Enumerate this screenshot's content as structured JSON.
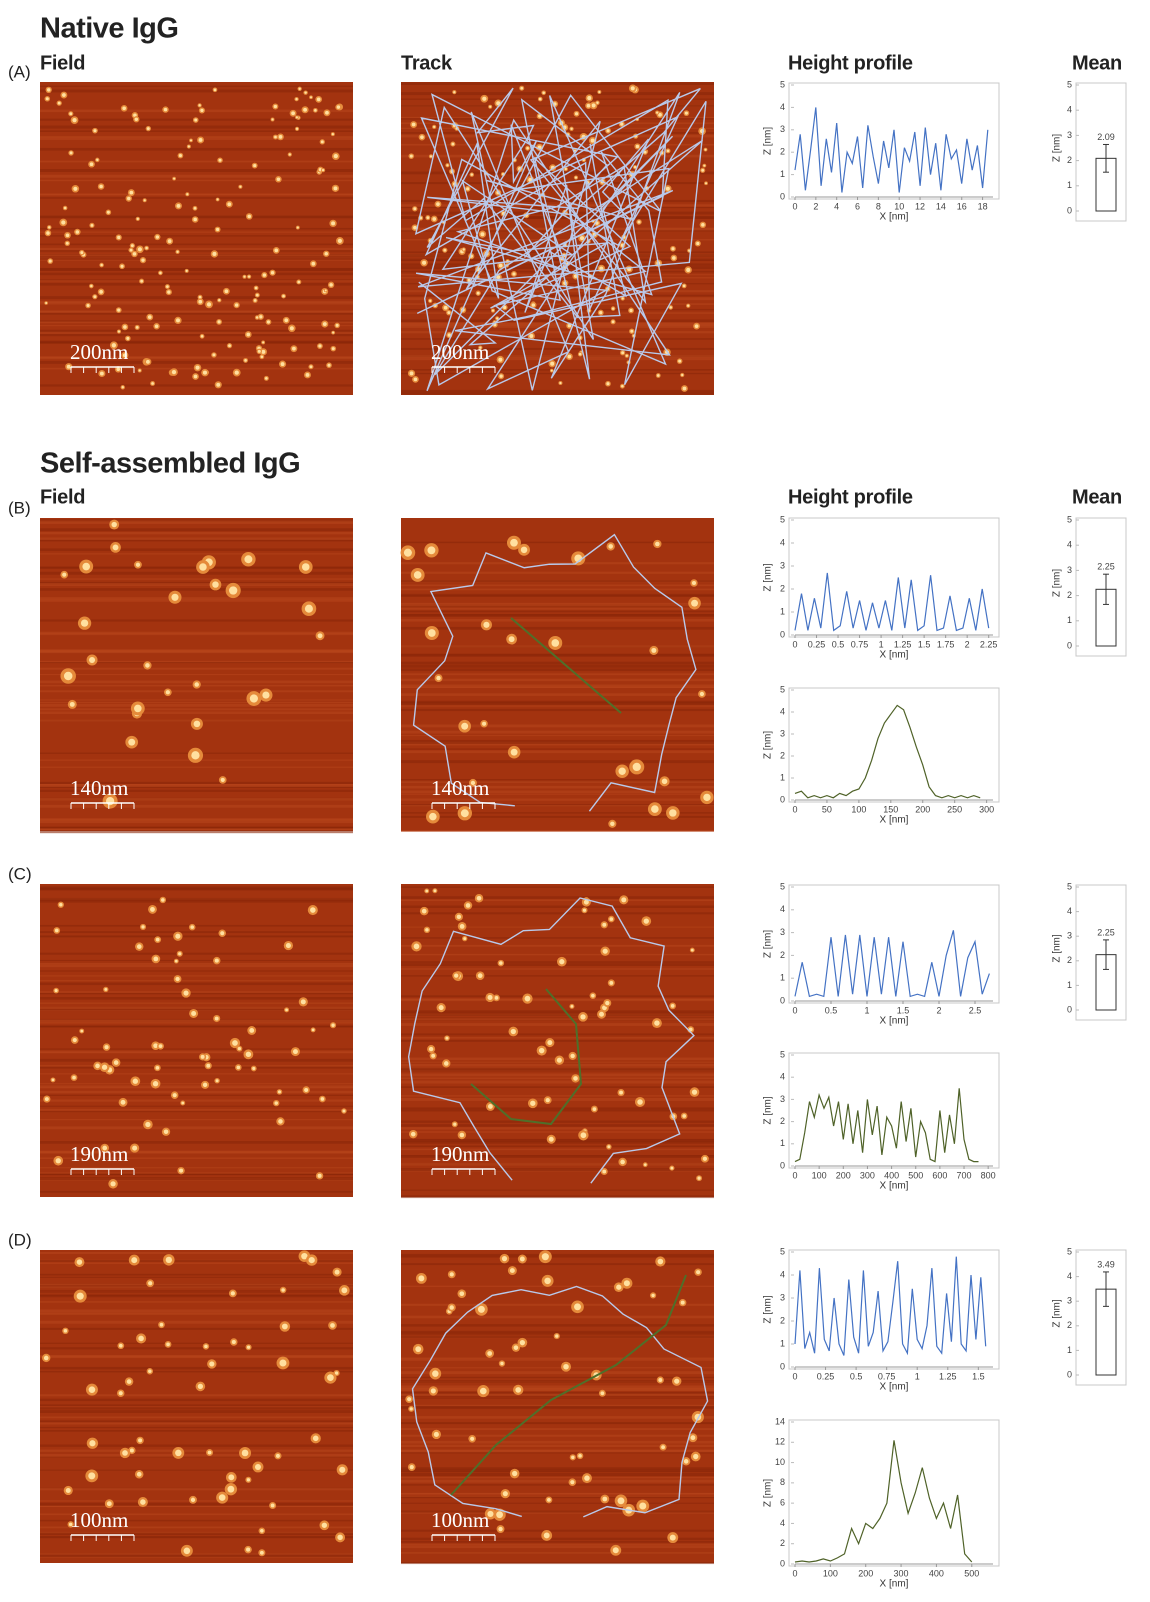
{
  "sections": [
    {
      "title": "Native IgG",
      "headers": {
        "field": "Field",
        "track": "Track",
        "profile": "Height profile",
        "mean": "Mean"
      }
    },
    {
      "title": "Self-assembled IgG",
      "headers": {
        "field": "Field",
        "profile": "Height profile",
        "mean": "Mean"
      }
    }
  ],
  "rows": [
    {
      "label": "(A)",
      "field_scale": "200nm",
      "track_scale": "200nm",
      "profiles": [
        {
          "type": "line",
          "color": "#4472c4",
          "x_label": "X [nm]",
          "y_label": "Z [nm]",
          "x": [
            0,
            0.5,
            1,
            1.5,
            2,
            2.5,
            3,
            3.5,
            4,
            4.5,
            5,
            5.5,
            6,
            6.5,
            7,
            7.5,
            8,
            8.5,
            9,
            9.5,
            10,
            10.5,
            11,
            11.5,
            12,
            12.5,
            13,
            13.5,
            14,
            14.5,
            15,
            15.5,
            16,
            16.5,
            17,
            17.5,
            18,
            18.5
          ],
          "values": [
            1.2,
            2.8,
            0.3,
            2.1,
            4.0,
            0.5,
            2.6,
            1.1,
            3.3,
            0.2,
            2.0,
            1.5,
            2.7,
            0.4,
            3.2,
            1.8,
            0.6,
            2.5,
            1.3,
            3.0,
            0.2,
            2.2,
            1.6,
            2.9,
            0.5,
            3.1,
            1.0,
            2.4,
            0.3,
            2.8,
            1.7,
            2.1,
            0.6,
            2.6,
            1.2,
            2.3,
            0.4,
            3.0
          ],
          "xlim": [
            0,
            19
          ],
          "ylim": [
            0,
            5
          ],
          "xticks": [
            0,
            2,
            4,
            6,
            8,
            10,
            12,
            14,
            16,
            18
          ],
          "yticks": [
            0,
            1,
            2,
            3,
            4,
            5
          ]
        }
      ],
      "mean": {
        "type": "bar",
        "y_label": "Z [nm]",
        "values": [
          2.09
        ],
        "errors": [
          0.55
        ],
        "ylim": [
          0,
          5
        ],
        "yticks": [
          0,
          1,
          2,
          3,
          4,
          5
        ]
      }
    },
    {
      "label": "(B)",
      "field_scale": "140nm",
      "track_scale": "140nm",
      "profiles": [
        {
          "type": "line",
          "color": "#4472c4",
          "x_label": "X [nm]",
          "y_label": "Z [nm]",
          "x": [
            0,
            0.075,
            0.15,
            0.225,
            0.3,
            0.375,
            0.45,
            0.525,
            0.6,
            0.675,
            0.75,
            0.825,
            0.9,
            0.975,
            1.05,
            1.125,
            1.2,
            1.275,
            1.35,
            1.425,
            1.5,
            1.575,
            1.65,
            1.725,
            1.8,
            1.875,
            1.95,
            2.025,
            2.1,
            2.175,
            2.25
          ],
          "values": [
            0.2,
            1.8,
            0.2,
            1.6,
            0.3,
            2.7,
            0.2,
            0.4,
            1.9,
            0.3,
            1.5,
            0.2,
            1.4,
            0.3,
            1.5,
            0.2,
            2.5,
            0.3,
            2.4,
            0.2,
            0.4,
            2.6,
            0.2,
            0.3,
            1.7,
            0.2,
            0.3,
            1.6,
            0.2,
            2.0,
            0.3
          ],
          "xlim": [
            0,
            2.3
          ],
          "ylim": [
            0,
            5
          ],
          "xticks": [
            0,
            0.25,
            0.5,
            0.75,
            1,
            1.25,
            1.5,
            1.75,
            2,
            2.25
          ],
          "yticks": [
            0,
            1,
            2,
            3,
            4,
            5
          ]
        },
        {
          "type": "line",
          "color": "#4f6228",
          "x_label": "X [nm]",
          "y_label": "Z [nm]",
          "x": [
            0,
            10,
            20,
            30,
            40,
            50,
            60,
            70,
            80,
            90,
            100,
            110,
            120,
            130,
            140,
            150,
            160,
            170,
            180,
            190,
            200,
            210,
            220,
            230,
            240,
            250,
            260,
            270,
            280,
            290
          ],
          "values": [
            0.3,
            0.4,
            0.1,
            0.2,
            0.1,
            0.2,
            0.1,
            0.3,
            0.2,
            0.4,
            0.5,
            1.0,
            1.8,
            2.8,
            3.5,
            3.9,
            4.3,
            4.1,
            3.3,
            2.4,
            1.6,
            0.6,
            0.2,
            0.1,
            0.2,
            0.1,
            0.2,
            0.1,
            0.2,
            0.1
          ],
          "xlim": [
            0,
            310
          ],
          "ylim": [
            0,
            5
          ],
          "xticks": [
            0,
            50,
            100,
            150,
            200,
            250,
            300
          ],
          "yticks": [
            0,
            1,
            2,
            3,
            4,
            5
          ]
        }
      ],
      "mean": {
        "type": "bar",
        "y_label": "Z [nm]",
        "values": [
          2.25
        ],
        "errors": [
          0.6
        ],
        "ylim": [
          0,
          5
        ],
        "yticks": [
          0,
          1,
          2,
          3,
          4,
          5
        ]
      }
    },
    {
      "label": "(C)",
      "field_scale": "190nm",
      "track_scale": "190nm",
      "profiles": [
        {
          "type": "line",
          "color": "#4472c4",
          "x_label": "X [nm]",
          "y_label": "Z [nm]",
          "x": [
            0,
            0.1,
            0.2,
            0.3,
            0.4,
            0.5,
            0.6,
            0.7,
            0.8,
            0.9,
            1,
            1.1,
            1.2,
            1.3,
            1.4,
            1.5,
            1.6,
            1.7,
            1.8,
            1.9,
            2,
            2.1,
            2.2,
            2.3,
            2.4,
            2.5,
            2.6,
            2.7
          ],
          "values": [
            0.2,
            1.7,
            0.2,
            0.3,
            0.2,
            2.8,
            0.2,
            2.9,
            0.3,
            2.9,
            0.2,
            2.8,
            0.3,
            2.8,
            0.2,
            2.6,
            0.2,
            0.3,
            0.2,
            1.7,
            0.2,
            2.0,
            3.1,
            0.2,
            1.9,
            2.6,
            0.3,
            1.2
          ],
          "xlim": [
            0,
            2.75
          ],
          "ylim": [
            0,
            5
          ],
          "xticks": [
            0,
            0.5,
            1,
            1.5,
            2,
            2.5
          ],
          "yticks": [
            0,
            1,
            2,
            3,
            4,
            5
          ]
        },
        {
          "type": "line",
          "color": "#4f6228",
          "x_label": "X [nm]",
          "y_label": "Z [nm]",
          "x": [
            0,
            20,
            40,
            60,
            80,
            100,
            120,
            140,
            160,
            180,
            200,
            220,
            240,
            260,
            280,
            300,
            320,
            340,
            360,
            380,
            400,
            420,
            440,
            460,
            480,
            500,
            520,
            540,
            560,
            580,
            600,
            620,
            640,
            660,
            680,
            700,
            720,
            740,
            760
          ],
          "values": [
            0.2,
            0.3,
            1.5,
            2.9,
            2.2,
            3.2,
            2.6,
            3.1,
            1.8,
            2.9,
            1.2,
            2.8,
            1.0,
            2.5,
            0.6,
            3.0,
            1.4,
            2.7,
            0.5,
            2.2,
            1.8,
            0.8,
            2.9,
            1.1,
            2.6,
            0.4,
            2.0,
            1.5,
            0.3,
            0.2,
            2.5,
            0.6,
            2.3,
            1.0,
            3.5,
            1.2,
            0.3,
            0.2,
            0.2
          ],
          "xlim": [
            0,
            820
          ],
          "ylim": [
            0,
            5
          ],
          "xticks": [
            0,
            100,
            200,
            300,
            400,
            500,
            600,
            700,
            800
          ],
          "yticks": [
            0,
            1,
            2,
            3,
            4,
            5
          ]
        }
      ],
      "mean": {
        "type": "bar",
        "y_label": "Z [nm]",
        "values": [
          2.25
        ],
        "errors": [
          0.6
        ],
        "ylim": [
          0,
          5
        ],
        "yticks": [
          0,
          1,
          2,
          3,
          4,
          5
        ]
      }
    },
    {
      "label": "(D)",
      "field_scale": "100nm",
      "track_scale": "100nm",
      "profiles": [
        {
          "type": "line",
          "color": "#4472c4",
          "x_label": "X [nm]",
          "y_label": "Z [nm]",
          "x": [
            0,
            0.04,
            0.08,
            0.12,
            0.16,
            0.2,
            0.24,
            0.28,
            0.32,
            0.36,
            0.4,
            0.44,
            0.48,
            0.52,
            0.56,
            0.6,
            0.64,
            0.68,
            0.72,
            0.76,
            0.8,
            0.84,
            0.88,
            0.92,
            0.96,
            1,
            1.04,
            1.08,
            1.12,
            1.16,
            1.2,
            1.24,
            1.28,
            1.32,
            1.36,
            1.4,
            1.44,
            1.48,
            1.52,
            1.56
          ],
          "values": [
            1.0,
            4.2,
            0.8,
            1.5,
            0.6,
            4.3,
            1.2,
            0.7,
            3.0,
            1.0,
            0.5,
            3.8,
            1.3,
            0.6,
            4.2,
            0.9,
            1.5,
            3.3,
            0.7,
            1.1,
            2.8,
            4.6,
            1.0,
            0.6,
            3.4,
            1.2,
            0.8,
            1.8,
            4.3,
            0.9,
            0.6,
            3.2,
            1.1,
            4.8,
            1.0,
            0.7,
            4.0,
            1.2,
            3.9,
            0.9
          ],
          "xlim": [
            0,
            1.62
          ],
          "ylim": [
            0,
            5
          ],
          "xticks": [
            0,
            0.25,
            0.5,
            0.75,
            1,
            1.25,
            1.5
          ],
          "yticks": [
            0,
            1,
            2,
            3,
            4,
            5
          ]
        },
        {
          "type": "line",
          "color": "#4f6228",
          "x_label": "X [nm]",
          "y_label": "Z [nm]",
          "x": [
            0,
            20,
            40,
            60,
            80,
            100,
            120,
            140,
            160,
            180,
            200,
            220,
            240,
            260,
            280,
            300,
            320,
            340,
            360,
            380,
            400,
            420,
            440,
            460,
            480,
            500
          ],
          "values": [
            0.2,
            0.3,
            0.2,
            0.3,
            0.5,
            0.3,
            0.6,
            1.0,
            3.5,
            2.0,
            4.0,
            3.5,
            4.5,
            6.0,
            12.2,
            8.0,
            5.0,
            7.0,
            9.5,
            6.5,
            4.5,
            6.0,
            3.5,
            6.8,
            1.0,
            0.2
          ],
          "xlim": [
            0,
            560
          ],
          "ylim": [
            0,
            14
          ],
          "xticks": [
            0,
            100,
            200,
            300,
            400,
            500
          ],
          "yticks": [
            0,
            2,
            4,
            6,
            8,
            10,
            12,
            14
          ]
        }
      ],
      "mean": {
        "type": "bar",
        "y_label": "Z [nm]",
        "values": [
          3.49
        ],
        "errors": [
          0.7
        ],
        "ylim": [
          0,
          5
        ],
        "yticks": [
          0,
          1,
          2,
          3,
          4,
          5
        ]
      }
    }
  ]
}
